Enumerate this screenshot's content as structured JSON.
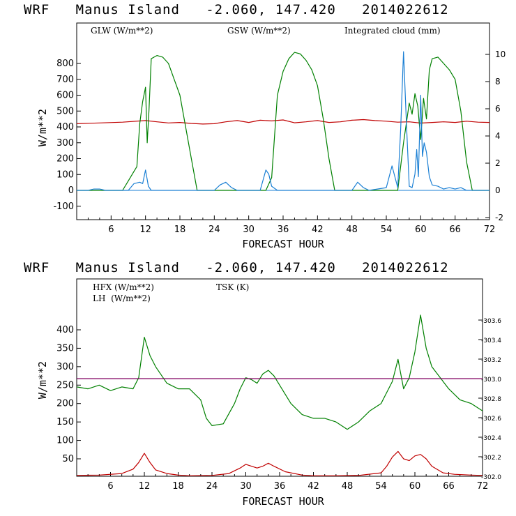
{
  "chart_data": [
    {
      "type": "line",
      "title": "WRF   Manus Island   -2.060, 147.420   2014022612",
      "xlabel": "FORECAST HOUR",
      "ylabel": "W/m**2",
      "y2label": "",
      "xlim": [
        0,
        72
      ],
      "ylim": [
        -150,
        1000
      ],
      "y2lim": [
        -2,
        11
      ],
      "xticks": [
        "6",
        "12",
        "18",
        "24",
        "30",
        "36",
        "42",
        "48",
        "54",
        "60",
        "66",
        "72"
      ],
      "yticks": [
        "-100",
        "0",
        "100",
        "200",
        "300",
        "400",
        "500",
        "600",
        "700",
        "800"
      ],
      "y2ticks": [
        "-2",
        "0",
        "2",
        "4",
        "6",
        "8",
        "10"
      ],
      "colors": {
        "glw": "#c00000",
        "gsw": "#008000",
        "cloud": "#1a7fd4"
      },
      "legend": [
        "GLW (W/m**2)",
        "GSW (W/m**2)",
        "Integrated cloud (mm)"
      ],
      "series": [
        {
          "name": "GLW (W/m**2)",
          "axis": "left",
          "x": [
            0,
            4,
            8,
            12,
            14,
            16,
            18,
            20,
            22,
            24,
            26,
            28,
            30,
            32,
            34,
            36,
            38,
            40,
            42,
            44,
            46,
            48,
            50,
            52,
            54,
            56,
            58,
            60,
            62,
            64,
            66,
            68,
            70,
            72
          ],
          "values": [
            420,
            425,
            430,
            440,
            432,
            425,
            428,
            422,
            418,
            420,
            432,
            440,
            428,
            442,
            438,
            444,
            426,
            432,
            440,
            428,
            432,
            442,
            446,
            440,
            436,
            430,
            432,
            424,
            428,
            432,
            428,
            436,
            430,
            428
          ]
        },
        {
          "name": "GSW (W/m**2)",
          "axis": "left",
          "x": [
            0,
            8,
            9,
            10,
            10.5,
            11,
            11.5,
            12,
            12.3,
            12.6,
            13,
            13.5,
            14,
            15,
            16,
            17,
            18,
            19,
            20,
            21,
            33,
            34,
            35,
            36,
            37,
            38,
            39,
            40,
            41,
            42,
            43,
            44,
            45,
            56,
            57,
            58,
            58.5,
            59,
            59.5,
            60,
            60.5,
            61,
            61.5,
            62,
            63,
            64,
            65,
            66,
            67,
            68,
            69,
            72
          ],
          "values": [
            0,
            0,
            60,
            120,
            150,
            420,
            560,
            650,
            300,
            500,
            830,
            840,
            850,
            840,
            800,
            700,
            600,
            400,
            200,
            0,
            0,
            80,
            600,
            750,
            830,
            870,
            860,
            820,
            760,
            660,
            450,
            200,
            0,
            0,
            300,
            550,
            480,
            610,
            530,
            320,
            580,
            450,
            760,
            830,
            840,
            800,
            760,
            700,
            500,
            180,
            0,
            0
          ]
        },
        {
          "name": "Integrated cloud (mm)",
          "axis": "right",
          "x": [
            0,
            2,
            3,
            4,
            5,
            9,
            10,
            11,
            11.5,
            12,
            12.5,
            13,
            14,
            24,
            25,
            26,
            27,
            28,
            32,
            33,
            33.5,
            34,
            35,
            48,
            49,
            50,
            51,
            54,
            55,
            55.5,
            56,
            56.5,
            57,
            57.5,
            58,
            58.5,
            59,
            59.3,
            59.6,
            60,
            60.3,
            60.6,
            61,
            61.5,
            62,
            63,
            64,
            65,
            66,
            67,
            68,
            72
          ],
          "values": [
            0,
            0,
            0.1,
            0.1,
            0,
            0,
            0.5,
            0.6,
            0.5,
            1.5,
            0.3,
            0,
            0,
            0,
            0.4,
            0.6,
            0.2,
            0,
            0,
            1.5,
            1.2,
            0.3,
            0,
            0,
            0.6,
            0.2,
            0,
            0.2,
            1.8,
            1.0,
            0.2,
            4.5,
            10.2,
            5.0,
            0.3,
            0.2,
            1.2,
            3.0,
            1.0,
            7.0,
            2.5,
            3.5,
            2.8,
            1.0,
            0.4,
            0.3,
            0.1,
            0.2,
            0.1,
            0.2,
            0,
            0
          ]
        }
      ]
    },
    {
      "type": "line",
      "title": "WRF   Manus Island   -2.060, 147.420   2014022612",
      "xlabel": "FORECAST HOUR",
      "ylabel": "W/m**2",
      "xlim": [
        0,
        72
      ],
      "ylim": [
        0,
        500
      ],
      "y2lim": [
        302.0,
        303.8
      ],
      "xticks": [
        "6",
        "12",
        "18",
        "24",
        "30",
        "36",
        "42",
        "48",
        "54",
        "60",
        "66",
        "72"
      ],
      "yticks": [
        "50",
        "100",
        "150",
        "200",
        "250",
        "300",
        "350",
        "400"
      ],
      "y2ticks": [
        "302.0",
        "302.2",
        "302.4",
        "302.6",
        "302.8",
        "303.0",
        "303.2",
        "303.4",
        "303.6"
      ],
      "colors": {
        "hfx": "#c00000",
        "lh": "#008000",
        "tsk": "#800060"
      },
      "legend": [
        "HFX (W/m**2)",
        "LH  (W/m**2)",
        "TSK (K)"
      ],
      "series": [
        {
          "name": "HFX (W/m**2)",
          "axis": "left",
          "x": [
            0,
            4,
            8,
            10,
            11,
            12,
            13,
            14,
            16,
            18,
            20,
            24,
            27,
            29,
            30,
            31,
            32,
            33,
            34,
            35,
            37,
            40,
            42,
            46,
            50,
            54,
            55,
            56,
            57,
            58,
            59,
            60,
            61,
            62,
            63,
            65,
            67,
            70,
            72
          ],
          "values": [
            5,
            6,
            10,
            22,
            40,
            65,
            40,
            20,
            10,
            6,
            4,
            5,
            10,
            25,
            35,
            30,
            25,
            30,
            38,
            30,
            15,
            6,
            4,
            4,
            5,
            12,
            30,
            55,
            70,
            50,
            45,
            58,
            62,
            50,
            30,
            12,
            8,
            6,
            5
          ]
        },
        {
          "name": "LH  (W/m**2)",
          "axis": "left",
          "x": [
            0,
            2,
            4,
            6,
            8,
            10,
            11,
            12,
            13,
            14,
            16,
            18,
            20,
            22,
            23,
            24,
            26,
            28,
            29,
            30,
            31,
            32,
            33,
            34,
            35,
            36,
            38,
            40,
            42,
            44,
            46,
            48,
            50,
            52,
            54,
            55,
            56,
            57,
            58,
            59,
            60,
            61,
            62,
            63,
            64,
            66,
            68,
            70,
            72
          ],
          "values": [
            245,
            240,
            250,
            235,
            245,
            240,
            270,
            380,
            330,
            300,
            255,
            240,
            240,
            210,
            160,
            140,
            145,
            200,
            240,
            270,
            265,
            255,
            280,
            290,
            275,
            250,
            200,
            170,
            160,
            160,
            150,
            130,
            150,
            180,
            200,
            230,
            260,
            320,
            240,
            270,
            340,
            440,
            350,
            300,
            280,
            240,
            210,
            200,
            180
          ]
        },
        {
          "name": "TSK (K)",
          "axis": "right",
          "x": [
            0,
            72
          ],
          "values": [
            303.0,
            303.0
          ]
        }
      ]
    }
  ]
}
